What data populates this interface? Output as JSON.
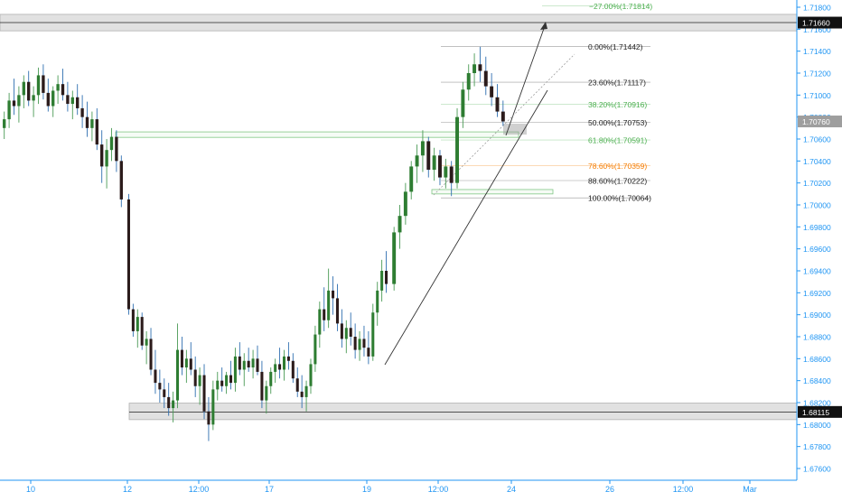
{
  "colors": {
    "axis_line": "#2196f3",
    "axis_text": "#2196f3",
    "up_candle": "#1b5e20",
    "up_body": "#2e7d32",
    "down_candle": "#2b1b1b",
    "wick_up": "#4a9a55",
    "wick_down": "#3a2a2a",
    "zone_gray": "#d9d9d9",
    "zone_green": "#81c784",
    "fib_black": "#222222",
    "fib_green": "#4caf50",
    "fib_orange": "#f57c00",
    "price_tag_bg": "#111111",
    "price_tag_gray": "#9e9e9e",
    "price_tag_text": "#ffffff"
  },
  "chart_data": {
    "type": "candlestick",
    "instrument_axis": "price",
    "ylim": [
      1.675,
      1.719
    ],
    "x_tick_labels": [
      "10",
      "12",
      "12:00",
      "17",
      "19",
      "12:00",
      "24",
      "26",
      "12:00",
      "Mar"
    ],
    "y_tick_labels": [
      "1.71800",
      "1.71600",
      "1.71400",
      "1.71200",
      "1.71000",
      "1.70800",
      "1.70600",
      "1.70400",
      "1.70200",
      "1.70000",
      "1.69800",
      "1.69600",
      "1.69400",
      "1.69200",
      "1.69000",
      "1.68800",
      "1.68600",
      "1.68400",
      "1.68200",
      "1.68000",
      "1.67800",
      "1.67600"
    ],
    "price_tags": [
      {
        "label": "1.71660",
        "value": 1.7166,
        "style": "dark"
      },
      {
        "label": "1.70760",
        "value": 1.7076,
        "style": "gray"
      },
      {
        "label": "1.68115",
        "value": 1.68115,
        "style": "dark"
      }
    ],
    "fibonacci_levels": [
      {
        "label": "−27.00%(1.71814)",
        "value": 1.71814,
        "color": "green"
      },
      {
        "label": "0.00%(1.71442)",
        "value": 1.71442,
        "color": "black"
      },
      {
        "label": "23.60%(1.71117)",
        "value": 1.71117,
        "color": "black"
      },
      {
        "label": "38.20%(1.70916)",
        "value": 1.70916,
        "color": "green"
      },
      {
        "label": "50.00%(1.70753)",
        "value": 1.70753,
        "color": "black"
      },
      {
        "label": "61.80%(1.70591)",
        "value": 1.70591,
        "color": "green"
      },
      {
        "label": "78.60%(1.70359)",
        "value": 1.70359,
        "color": "orange"
      },
      {
        "label": "88.60%(1.70222)",
        "value": 1.70222,
        "color": "black"
      },
      {
        "label": "100.00%(1.70064)",
        "value": 1.70064,
        "color": "black"
      }
    ],
    "zones": [
      {
        "kind": "resistance",
        "top": 1.71735,
        "bottom": 1.71585
      },
      {
        "kind": "support",
        "top": 1.68195,
        "bottom": 1.68045
      },
      {
        "kind": "demand",
        "top": 1.70665,
        "bottom": 1.70615
      },
      {
        "kind": "demand",
        "top": 1.7014,
        "bottom": 1.701
      }
    ],
    "candles_ohlc": [
      [
        1.707,
        1.7085,
        1.706,
        1.7078
      ],
      [
        1.7078,
        1.7102,
        1.707,
        1.7095
      ],
      [
        1.7095,
        1.7115,
        1.7082,
        1.709
      ],
      [
        1.709,
        1.7108,
        1.7075,
        1.71
      ],
      [
        1.71,
        1.7118,
        1.7088,
        1.7112
      ],
      [
        1.7112,
        1.7122,
        1.709,
        1.7095
      ],
      [
        1.7095,
        1.7108,
        1.708,
        1.71
      ],
      [
        1.71,
        1.7125,
        1.7092,
        1.7118
      ],
      [
        1.7118,
        1.7128,
        1.7096,
        1.7102
      ],
      [
        1.7102,
        1.7115,
        1.7085,
        1.709
      ],
      [
        1.709,
        1.7108,
        1.708,
        1.7104
      ],
      [
        1.7104,
        1.7118,
        1.7092,
        1.711
      ],
      [
        1.711,
        1.7124,
        1.7095,
        1.71
      ],
      [
        1.71,
        1.7112,
        1.7085,
        1.7092
      ],
      [
        1.7092,
        1.7104,
        1.7078,
        1.7098
      ],
      [
        1.7098,
        1.711,
        1.7082,
        1.7088
      ],
      [
        1.7088,
        1.71,
        1.707,
        1.708
      ],
      [
        1.708,
        1.7094,
        1.7062,
        1.707
      ],
      [
        1.707,
        1.7085,
        1.7058,
        1.7078
      ],
      [
        1.7078,
        1.7088,
        1.705,
        1.7055
      ],
      [
        1.7055,
        1.7068,
        1.702,
        1.7035
      ],
      [
        1.7035,
        1.706,
        1.7015,
        1.705
      ],
      [
        1.705,
        1.707,
        1.704,
        1.7062
      ],
      [
        1.7062,
        1.7068,
        1.703,
        1.704
      ],
      [
        1.704,
        1.7045,
        1.6998,
        1.7005
      ],
      [
        1.7005,
        1.701,
        1.69,
        1.6905
      ],
      [
        1.6905,
        1.691,
        1.688,
        1.6885
      ],
      [
        1.6885,
        1.6905,
        1.687,
        1.6898
      ],
      [
        1.6898,
        1.6902,
        1.6868,
        1.6872
      ],
      [
        1.6872,
        1.6885,
        1.6855,
        1.6878
      ],
      [
        1.6878,
        1.6888,
        1.6845,
        1.685
      ],
      [
        1.685,
        1.6868,
        1.6828,
        1.6838
      ],
      [
        1.6838,
        1.685,
        1.682,
        1.6832
      ],
      [
        1.6832,
        1.6842,
        1.6815,
        1.6825
      ],
      [
        1.6825,
        1.6838,
        1.6808,
        1.6815
      ],
      [
        1.6815,
        1.683,
        1.6802,
        1.6822
      ],
      [
        1.6822,
        1.6892,
        1.6815,
        1.6868
      ],
      [
        1.6868,
        1.688,
        1.6845,
        1.6852
      ],
      [
        1.6852,
        1.6868,
        1.6838,
        1.686
      ],
      [
        1.686,
        1.6875,
        1.6845,
        1.685
      ],
      [
        1.685,
        1.6862,
        1.6825,
        1.6835
      ],
      [
        1.6835,
        1.6852,
        1.6818,
        1.6845
      ],
      [
        1.6845,
        1.6855,
        1.6805,
        1.6812
      ],
      [
        1.6812,
        1.6825,
        1.6785,
        1.68
      ],
      [
        1.68,
        1.684,
        1.6795,
        1.6832
      ],
      [
        1.6832,
        1.6848,
        1.6822,
        1.684
      ],
      [
        1.684,
        1.6852,
        1.683,
        1.6835
      ],
      [
        1.6835,
        1.6848,
        1.6828,
        1.6845
      ],
      [
        1.6845,
        1.6858,
        1.6832,
        1.6838
      ],
      [
        1.6838,
        1.687,
        1.683,
        1.6862
      ],
      [
        1.6862,
        1.6875,
        1.6845,
        1.685
      ],
      [
        1.685,
        1.6865,
        1.6835,
        1.6858
      ],
      [
        1.6858,
        1.687,
        1.6848,
        1.6852
      ],
      [
        1.6852,
        1.6868,
        1.6842,
        1.686
      ],
      [
        1.686,
        1.6872,
        1.6845,
        1.6848
      ],
      [
        1.6848,
        1.6858,
        1.6815,
        1.6822
      ],
      [
        1.6822,
        1.684,
        1.681,
        1.6835
      ],
      [
        1.6835,
        1.6852,
        1.6828,
        1.6848
      ],
      [
        1.6848,
        1.686,
        1.6838,
        1.6855
      ],
      [
        1.6855,
        1.687,
        1.6842,
        1.685
      ],
      [
        1.685,
        1.6868,
        1.684,
        1.6862
      ],
      [
        1.6862,
        1.6875,
        1.685,
        1.6858
      ],
      [
        1.6858,
        1.6865,
        1.6838,
        1.6842
      ],
      [
        1.6842,
        1.6852,
        1.6825,
        1.683
      ],
      [
        1.683,
        1.6845,
        1.6815,
        1.6825
      ],
      [
        1.6825,
        1.684,
        1.6812,
        1.6835
      ],
      [
        1.6835,
        1.686,
        1.6828,
        1.6855
      ],
      [
        1.6855,
        1.689,
        1.6848,
        1.6882
      ],
      [
        1.6882,
        1.6912,
        1.687,
        1.6905
      ],
      [
        1.6905,
        1.6925,
        1.6885,
        1.6895
      ],
      [
        1.6895,
        1.6942,
        1.6888,
        1.6922
      ],
      [
        1.6922,
        1.6935,
        1.69,
        1.6915
      ],
      [
        1.6915,
        1.6928,
        1.6885,
        1.6892
      ],
      [
        1.6892,
        1.6905,
        1.687,
        1.6878
      ],
      [
        1.6878,
        1.6895,
        1.6865,
        1.6888
      ],
      [
        1.6888,
        1.6902,
        1.6872,
        1.688
      ],
      [
        1.688,
        1.6892,
        1.686,
        1.6868
      ],
      [
        1.6868,
        1.6885,
        1.6858,
        1.6878
      ],
      [
        1.6878,
        1.689,
        1.6862,
        1.687
      ],
      [
        1.687,
        1.6885,
        1.6855,
        1.6862
      ],
      [
        1.6862,
        1.691,
        1.6858,
        1.6902
      ],
      [
        1.6902,
        1.693,
        1.689,
        1.6922
      ],
      [
        1.6922,
        1.695,
        1.6912,
        1.694
      ],
      [
        1.694,
        1.6958,
        1.692,
        1.6928
      ],
      [
        1.6928,
        1.698,
        1.6922,
        1.6975
      ],
      [
        1.6975,
        1.7,
        1.696,
        1.699
      ],
      [
        1.699,
        1.702,
        1.6982,
        1.7012
      ],
      [
        1.7012,
        1.704,
        1.7005,
        1.7035
      ],
      [
        1.7035,
        1.7055,
        1.702,
        1.7045
      ],
      [
        1.7045,
        1.7068,
        1.703,
        1.7058
      ],
      [
        1.7058,
        1.7062,
        1.7025,
        1.7032
      ],
      [
        1.7032,
        1.7052,
        1.7022,
        1.7045
      ],
      [
        1.7045,
        1.705,
        1.7018,
        1.7025
      ],
      [
        1.7025,
        1.7042,
        1.7015,
        1.7035
      ],
      [
        1.7035,
        1.704,
        1.7008,
        1.702
      ],
      [
        1.702,
        1.7088,
        1.7015,
        1.708
      ],
      [
        1.708,
        1.7112,
        1.707,
        1.7105
      ],
      [
        1.7105,
        1.7128,
        1.7095,
        1.712
      ],
      [
        1.712,
        1.7138,
        1.7108,
        1.7128
      ],
      [
        1.7128,
        1.7144,
        1.7112,
        1.7122
      ],
      [
        1.7122,
        1.7135,
        1.71,
        1.7108
      ],
      [
        1.7108,
        1.712,
        1.709,
        1.7098
      ],
      [
        1.7098,
        1.711,
        1.708,
        1.7085
      ],
      [
        1.7085,
        1.7095,
        1.7072,
        1.7076
      ]
    ]
  }
}
